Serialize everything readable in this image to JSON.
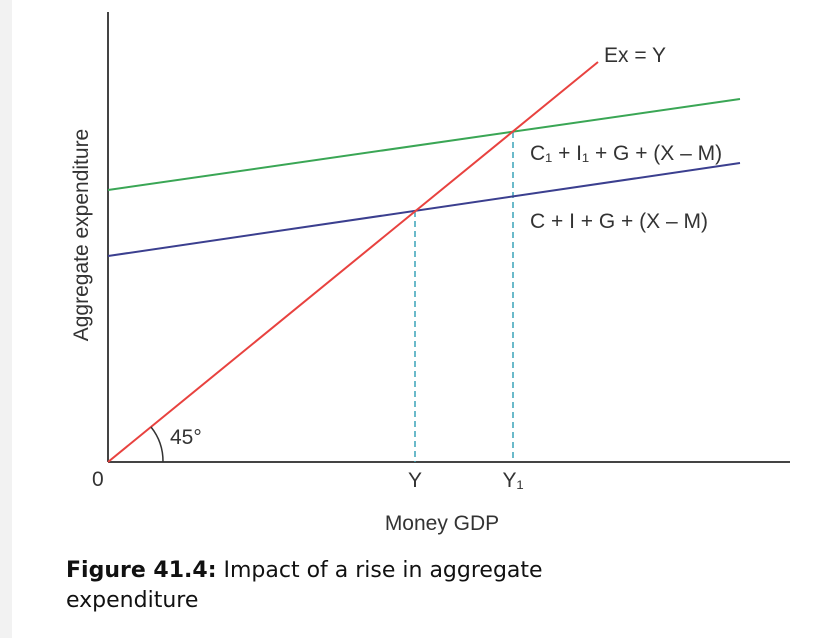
{
  "axes": {
    "y_label": "Aggregate expenditure",
    "x_label": "Money GDP",
    "origin": "0"
  },
  "lines": [
    {
      "label": "Ex = Y",
      "color": "#e8423f"
    },
    {
      "label": "C₁ + I₁ + G + (X – M)",
      "color": "#3aa655"
    },
    {
      "label": "C + I + G + (X – M)",
      "color": "#3b3f8f"
    }
  ],
  "x_marks": [
    "Y",
    "Y₁"
  ],
  "angle_label": "45°",
  "caption": {
    "label": "Figure 41.4:",
    "text": "Impact of a rise in aggregate expenditure"
  }
}
